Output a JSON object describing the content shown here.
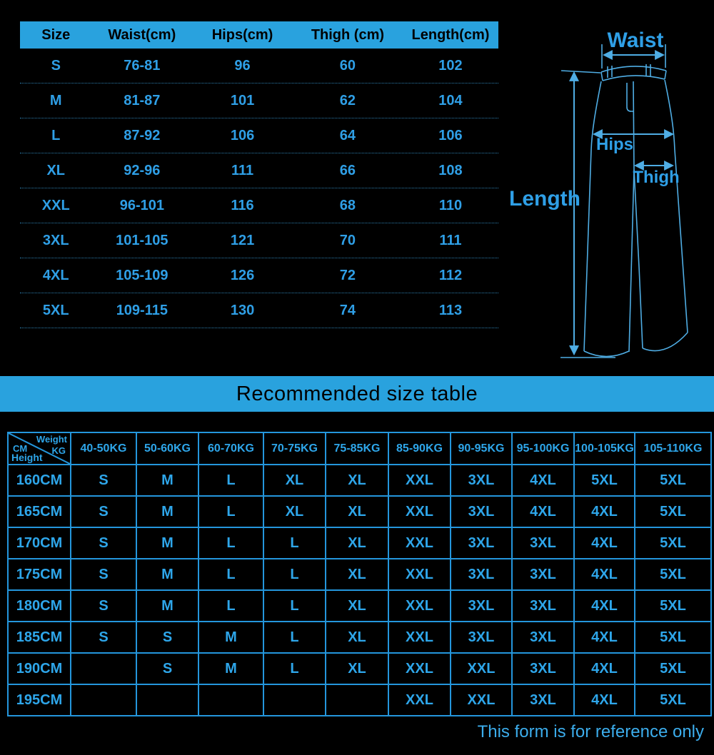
{
  "size_table": {
    "headers": [
      "Size",
      "Waist(cm)",
      "Hips(cm)",
      "Thigh (cm)",
      "Length(cm)"
    ],
    "rows": [
      [
        "S",
        "76-81",
        "96",
        "60",
        "102"
      ],
      [
        "M",
        "81-87",
        "101",
        "62",
        "104"
      ],
      [
        "L",
        "87-92",
        "106",
        "64",
        "106"
      ],
      [
        "XL",
        "92-96",
        "111",
        "66",
        "108"
      ],
      [
        "XXL",
        "96-101",
        "116",
        "68",
        "110"
      ],
      [
        "3XL",
        "101-105",
        "121",
        "70",
        "111"
      ],
      [
        "4XL",
        "105-109",
        "126",
        "72",
        "112"
      ],
      [
        "5XL",
        "109-115",
        "130",
        "74",
        "113"
      ]
    ]
  },
  "diagram": {
    "labels": {
      "waist": "Waist",
      "hips": "Hips",
      "thigh": "Thigh",
      "length": "Length"
    }
  },
  "banner": {
    "title": "Recommended size table"
  },
  "recommend_table": {
    "corner": {
      "weight": "Weight",
      "kg": "KG",
      "cm": "CM",
      "height": "Height"
    },
    "weight_headers": [
      "40-50KG",
      "50-60KG",
      "60-70KG",
      "70-75KG",
      "75-85KG",
      "85-90KG",
      "90-95KG",
      "95-100KG",
      "100-105KG",
      "105-110KG"
    ],
    "rows": [
      {
        "height": "160CM",
        "sizes": [
          "S",
          "M",
          "L",
          "XL",
          "XL",
          "XXL",
          "3XL",
          "4XL",
          "5XL",
          "5XL"
        ]
      },
      {
        "height": "165CM",
        "sizes": [
          "S",
          "M",
          "L",
          "XL",
          "XL",
          "XXL",
          "3XL",
          "4XL",
          "4XL",
          "5XL"
        ]
      },
      {
        "height": "170CM",
        "sizes": [
          "S",
          "M",
          "L",
          "L",
          "XL",
          "XXL",
          "3XL",
          "3XL",
          "4XL",
          "5XL"
        ]
      },
      {
        "height": "175CM",
        "sizes": [
          "S",
          "M",
          "L",
          "L",
          "XL",
          "XXL",
          "3XL",
          "3XL",
          "4XL",
          "5XL"
        ]
      },
      {
        "height": "180CM",
        "sizes": [
          "S",
          "M",
          "L",
          "L",
          "XL",
          "XXL",
          "3XL",
          "3XL",
          "4XL",
          "5XL"
        ]
      },
      {
        "height": "185CM",
        "sizes": [
          "S",
          "S",
          "M",
          "L",
          "XL",
          "XXL",
          "3XL",
          "3XL",
          "4XL",
          "5XL"
        ]
      },
      {
        "height": "190CM",
        "sizes": [
          "",
          "S",
          "M",
          "L",
          "XL",
          "XXL",
          "XXL",
          "3XL",
          "4XL",
          "5XL"
        ]
      },
      {
        "height": "195CM",
        "sizes": [
          "",
          "",
          "",
          "",
          "",
          "XXL",
          "XXL",
          "3XL",
          "4XL",
          "5XL"
        ]
      }
    ]
  },
  "footer": {
    "note": "This form is for reference only"
  },
  "colors": {
    "background": "#000000",
    "accent_blue": "#29a2de",
    "table_text_blue": "#2f9fe6",
    "grid_line_blue": "#2496dc",
    "diagram_line_blue": "#4fade4"
  }
}
